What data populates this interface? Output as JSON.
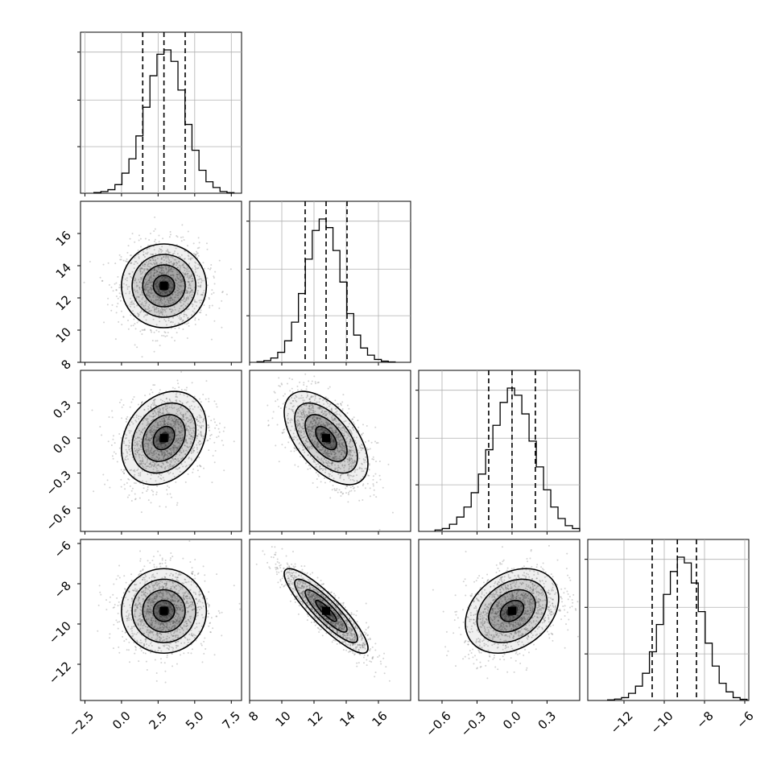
{
  "chart_data": {
    "type": "corner",
    "title": "",
    "n_params": 4,
    "parameters": [
      {
        "index": 0,
        "label": "",
        "range": [
          -2.8,
          8.2
        ],
        "ticks": [
          -2.5,
          0.0,
          2.5,
          5.0,
          7.5
        ],
        "tick_labels": [
          "−2.5",
          "0.0",
          "2.5",
          "5.0",
          "7.5"
        ],
        "quantiles": [
          1.45,
          2.9,
          4.35
        ],
        "mean": 2.9,
        "sd": 1.45
      },
      {
        "index": 1,
        "label": "",
        "range": [
          8,
          18
        ],
        "ticks": [
          8,
          10,
          12,
          14,
          16
        ],
        "tick_labels": [
          "8",
          "10",
          "12",
          "14",
          "16"
        ],
        "quantiles": [
          11.45,
          12.75,
          14.05
        ],
        "mean": 12.75,
        "sd": 1.3
      },
      {
        "index": 2,
        "label": "",
        "range": [
          -0.8,
          0.58
        ],
        "ticks": [
          -0.6,
          -0.3,
          0.0,
          0.3
        ],
        "tick_labels": [
          "−0.6",
          "−0.3",
          "0.0",
          "0.3"
        ],
        "quantiles": [
          -0.2,
          0.0,
          0.2
        ],
        "mean": 0.0,
        "sd": 0.2
      },
      {
        "index": 3,
        "label": "",
        "range": [
          -13.8,
          -5.8
        ],
        "ticks": [
          -12,
          -10,
          -8,
          -6
        ],
        "tick_labels": [
          "−12",
          "−10",
          "−8",
          "−6"
        ],
        "quantiles": [
          -10.6,
          -9.35,
          -8.4
        ],
        "mean": -9.35,
        "sd": 1.05
      }
    ],
    "histograms": [
      {
        "param": 0,
        "bins": 20,
        "values": [
          0.005,
          0.012,
          0.025,
          0.06,
          0.14,
          0.24,
          0.4,
          0.6,
          0.82,
          0.97,
          1.0,
          0.92,
          0.72,
          0.48,
          0.3,
          0.16,
          0.08,
          0.04,
          0.012,
          0.004
        ]
      },
      {
        "param": 1,
        "bins": 20,
        "values": [
          0.004,
          0.012,
          0.03,
          0.07,
          0.15,
          0.28,
          0.48,
          0.72,
          0.92,
          1.0,
          0.94,
          0.78,
          0.56,
          0.34,
          0.19,
          0.1,
          0.05,
          0.02,
          0.008,
          0.003
        ]
      },
      {
        "param": 2,
        "bins": 20,
        "values": [
          0.01,
          0.02,
          0.05,
          0.1,
          0.17,
          0.27,
          0.4,
          0.57,
          0.74,
          0.9,
          1.0,
          0.95,
          0.82,
          0.63,
          0.45,
          0.29,
          0.17,
          0.09,
          0.04,
          0.02
        ]
      },
      {
        "param": 3,
        "bins": 20,
        "values": [
          0.004,
          0.01,
          0.02,
          0.05,
          0.1,
          0.19,
          0.34,
          0.53,
          0.74,
          0.9,
          1.0,
          0.96,
          0.82,
          0.62,
          0.4,
          0.24,
          0.12,
          0.06,
          0.02,
          0.008
        ]
      }
    ],
    "correlations": [
      {
        "x": 0,
        "y": 1,
        "rho": 0.0
      },
      {
        "x": 0,
        "y": 2,
        "rho": 0.25
      },
      {
        "x": 1,
        "y": 2,
        "rho": -0.55
      },
      {
        "x": 0,
        "y": 3,
        "rho": 0.0
      },
      {
        "x": 1,
        "y": 3,
        "rho": -0.88
      },
      {
        "x": 2,
        "y": 3,
        "rho": 0.3
      }
    ],
    "contour_levels_sigma": [
      0.5,
      1.0,
      1.5,
      2.0
    ],
    "grid": true,
    "colors": {
      "line": "#000000",
      "points": "#808080",
      "grid": "#b0b0b0",
      "fill": "#000000"
    }
  }
}
